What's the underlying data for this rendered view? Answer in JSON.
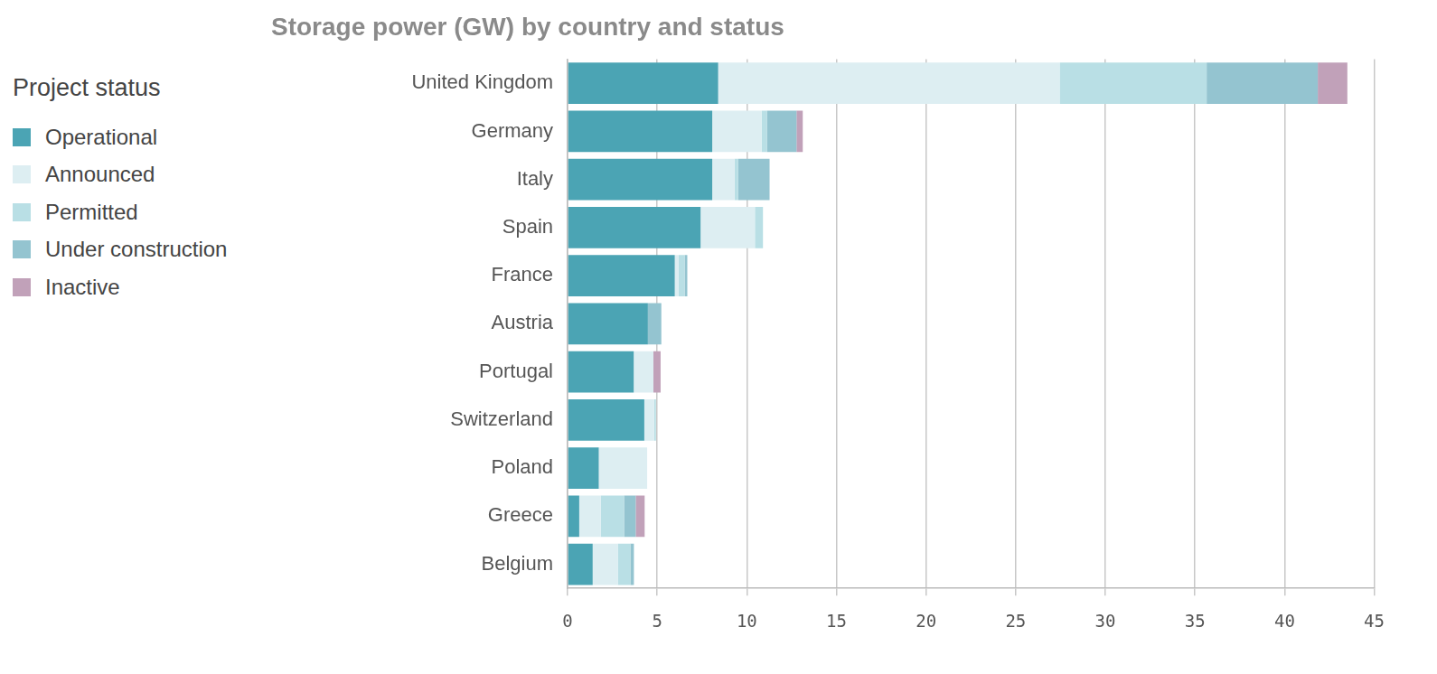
{
  "chart_data": {
    "type": "bar",
    "title": "Storage power (GW) by country and status",
    "orientation": "horizontal",
    "stacked": true,
    "grid": true,
    "legend": "left",
    "legend_title": "Project status",
    "categories": [
      "United Kingdom",
      "Germany",
      "Italy",
      "Spain",
      "France",
      "Austria",
      "Portugal",
      "Switzerland",
      "Poland",
      "Greece",
      "Belgium"
    ],
    "series": [
      {
        "name": "Operational",
        "color": "#4ba4b4",
        "values": [
          8.4,
          8.07,
          8.07,
          7.42,
          5.98,
          4.48,
          3.69,
          4.28,
          1.74,
          0.65,
          1.4
        ]
      },
      {
        "name": "Announced",
        "color": "#ddeef2",
        "values": [
          19.05,
          2.75,
          1.25,
          3.03,
          0.2,
          0,
          1.1,
          0.55,
          2.7,
          1.2,
          1.4
        ]
      },
      {
        "name": "Permitted",
        "color": "#b9dfe5",
        "values": [
          8.2,
          0.3,
          0.2,
          0.45,
          0.35,
          0,
          0,
          0.1,
          0,
          1.3,
          0.7
        ]
      },
      {
        "name": "Under construction",
        "color": "#94c4d0",
        "values": [
          6.2,
          1.65,
          1.75,
          0,
          0.15,
          0.75,
          0,
          0,
          0,
          0.65,
          0.2
        ]
      },
      {
        "name": "Inactive",
        "color": "#c1a1b9",
        "values": [
          1.65,
          0.35,
          0,
          0,
          0,
          0,
          0.4,
          0,
          0,
          0.5,
          0
        ]
      }
    ],
    "xlim": [
      0,
      45
    ],
    "xticks": [
      0,
      5,
      10,
      15,
      20,
      25,
      30,
      35,
      40,
      45
    ]
  }
}
